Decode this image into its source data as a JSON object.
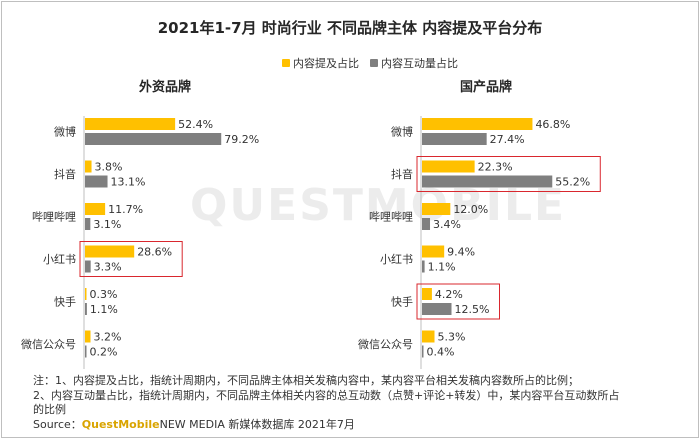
{
  "chart_data": {
    "type": "bar",
    "orientation": "horizontal",
    "title": "2021年1-7月 时尚行业 不同品牌主体 内容提及平台分布",
    "legend": {
      "placement": "top-right",
      "entries": [
        "内容提及占比",
        "内容互动量占比"
      ]
    },
    "categories": [
      "微博",
      "抖音",
      "哔哩哔哩",
      "小红书",
      "快手",
      "微信公众号"
    ],
    "colors": {
      "mention": "#ffc000",
      "interaction": "#7f7f7f",
      "highlight": "#d9272e",
      "axis": "#bfbfbf"
    },
    "panels": [
      {
        "title": "外资品牌",
        "highlight_categories": [
          "小红书"
        ],
        "series": [
          {
            "name": "内容提及占比",
            "values": [
              52.4,
              3.8,
              11.7,
              28.6,
              0.3,
              3.2
            ]
          },
          {
            "name": "内容互动量占比",
            "values": [
              79.2,
              13.1,
              3.1,
              3.3,
              1.1,
              0.2
            ]
          }
        ]
      },
      {
        "title": "国产品牌",
        "highlight_categories": [
          "抖音",
          "快手"
        ],
        "series": [
          {
            "name": "内容提及占比",
            "values": [
              46.8,
              22.3,
              12.0,
              9.4,
              4.2,
              5.3
            ]
          },
          {
            "name": "内容互动量占比",
            "values": [
              27.4,
              55.2,
              3.4,
              1.1,
              12.5,
              0.4
            ]
          }
        ]
      }
    ],
    "value_suffix": "%"
  },
  "notes": {
    "line1": "注：1、内容提及占比，指统计周期内，不同品牌主体相关发稿内容中，某内容平台相关发稿内容数所占的比例；",
    "line2": "2、内容互动量占比，指统计周期内，不同品牌主体相关内容的总互动数（点赞+评论+转发）中，某内容平台互动数所占",
    "line3": "的比例",
    "source_prefix": "Source：",
    "source_brand": "QuestMobile",
    "source_rest": "NEW MEDIA 新媒体数据库 2021年7月"
  },
  "watermark": "QUESTMOBILE"
}
